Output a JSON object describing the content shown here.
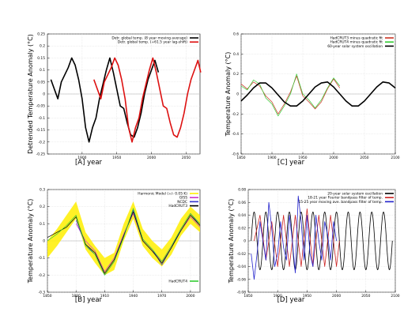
{
  "figure": {
    "panels": [
      {
        "id": "A",
        "panel_label": "[A]   year",
        "ylabel": "Detrended Temperature Anomaly (°C)",
        "xlim": [
          1850,
          2070
        ],
        "ylim": [
          -0.25,
          0.25
        ],
        "xticks": [
          1900,
          1950,
          2000,
          2050
        ],
        "yticks": [
          0.25,
          0.2,
          0.15,
          0.1,
          0.05,
          0,
          -0.05,
          -0.1,
          -0.15,
          -0.2,
          -0.25
        ],
        "ytick_labels": [
          "0.25",
          "0.2",
          "0.15",
          "0.1",
          "0.05",
          "0",
          "-0.05",
          "-0.1",
          "-0.15",
          "-0.2",
          "-0.25"
        ],
        "legend": [
          {
            "label": "Detr. global temp. (8 year moving average)",
            "color": "#000000"
          },
          {
            "label": "Detr. global temp. (+61.5 year lag-shift)",
            "color": "#dd1111"
          }
        ]
      },
      {
        "id": "C",
        "panel_label": "[C]   year",
        "ylabel": "Temperature Anomaly (°C)",
        "xlim": [
          1850,
          2100
        ],
        "ylim": [
          -0.6,
          0.6
        ],
        "xticks": [
          1850,
          1900,
          1950,
          2000,
          2050,
          2100
        ],
        "yticks": [
          0.6,
          0.4,
          0.2,
          0,
          -0.2,
          -0.4,
          -0.6
        ],
        "ytick_labels": [
          "0.6",
          "0.4",
          "0.2",
          "0",
          "-0.2",
          "-0.4",
          "-0.6"
        ],
        "legend": [
          {
            "label": "HadCRUT3 minus quadratic fit",
            "color": "#cc3322"
          },
          {
            "label": "HadCRUT4 minus quadratic fit",
            "color": "#33cc33"
          },
          {
            "label": "60-year solar system oscillation",
            "color": "#000000"
          }
        ]
      },
      {
        "id": "B",
        "panel_label": "[B]   year",
        "ylabel": "Temperature Anomaly (°C)",
        "xlim": [
          1850,
          2010
        ],
        "ylim": [
          -0.3,
          0.3
        ],
        "xticks": [
          1850,
          1880,
          1910,
          1940,
          1970,
          2000
        ],
        "yticks": [
          0.3,
          0.2,
          0.1,
          0,
          -0.1,
          -0.2,
          -0.3
        ],
        "ytick_labels": [
          "0.3",
          "0.2",
          "0.1",
          "0",
          "-0.1",
          "-0.2",
          "-0.3"
        ],
        "legend": [
          {
            "label": "Harmonic Model (+/- 0.05 K)",
            "color": "#ffee00"
          },
          {
            "label": "GISS",
            "color": "#cc33cc"
          },
          {
            "label": "NCDC",
            "color": "#3333cc"
          },
          {
            "label": "HadCRUT3",
            "color": "#000000"
          }
        ],
        "legend2": [
          {
            "label": "HadCRUT4",
            "color": "#33cc33"
          }
        ]
      },
      {
        "id": "D",
        "panel_label": "[D]   year",
        "ylabel": "Temperature Anomaly (°C)",
        "xlim": [
          1850,
          2100
        ],
        "ylim": [
          -0.08,
          0.08
        ],
        "xticks": [
          1850,
          1900,
          1950,
          2000,
          2050,
          2100
        ],
        "yticks": [
          0.08,
          0.06,
          0.04,
          0.02,
          0,
          -0.02,
          -0.04,
          -0.06,
          -0.08
        ],
        "ytick_labels": [
          "0.08",
          "0.06",
          "0.04",
          "0.02",
          "0",
          "-0.02",
          "-0.04",
          "-0.06",
          "-0.08"
        ],
        "legend": [
          {
            "label": "20-year solar system oscillation",
            "color": "#000000"
          },
          {
            "label": "18-21 year Fourier bandpass filter of temp.",
            "color": "#cc2222"
          },
          {
            "label": "15-25 year moving ave. bandpass filter of temp.",
            "color": "#2222cc"
          }
        ]
      }
    ]
  },
  "chart_data": [
    {
      "type": "line",
      "panel": "A",
      "ylabel": "Detrended Temperature Anomaly (°C)",
      "xlabel": "year",
      "series": [
        {
          "name": "Detr. global temp. (8 year moving average)",
          "color": "#000000",
          "x": [
            1855,
            1860,
            1865,
            1870,
            1875,
            1880,
            1885,
            1890,
            1895,
            1900,
            1905,
            1910,
            1915,
            1920,
            1925,
            1930,
            1935,
            1940,
            1945,
            1950,
            1955,
            1960,
            1965,
            1970,
            1975,
            1980,
            1985,
            1990,
            1995,
            2000,
            2005,
            2010
          ],
          "y": [
            0.06,
            0.02,
            -0.02,
            0.05,
            0.08,
            0.11,
            0.15,
            0.12,
            0.06,
            -0.02,
            -0.14,
            -0.2,
            -0.14,
            -0.1,
            -0.02,
            0.04,
            0.1,
            0.15,
            0.09,
            0.02,
            -0.05,
            -0.06,
            -0.12,
            -0.17,
            -0.18,
            -0.14,
            -0.08,
            0.0,
            0.06,
            0.1,
            0.14,
            0.09
          ]
        },
        {
          "name": "Detr. global temp. (+61.5 year lag-shift)",
          "color": "#dd1111",
          "x": [
            1917,
            1922,
            1927,
            1932,
            1937,
            1942,
            1947,
            1952,
            1957,
            1962,
            1967,
            1972,
            1977,
            1982,
            1987,
            1992,
            1997,
            2002,
            2007,
            2012,
            2017,
            2022,
            2027,
            2032,
            2037,
            2042,
            2047,
            2052,
            2057,
            2062,
            2067,
            2071
          ],
          "y": [
            0.06,
            0.02,
            -0.02,
            0.05,
            0.08,
            0.11,
            0.15,
            0.12,
            0.06,
            -0.02,
            -0.14,
            -0.2,
            -0.14,
            -0.1,
            -0.02,
            0.04,
            0.1,
            0.15,
            0.09,
            0.02,
            -0.05,
            -0.06,
            -0.12,
            -0.17,
            -0.18,
            -0.14,
            -0.08,
            0.0,
            0.06,
            0.1,
            0.14,
            0.09
          ]
        }
      ]
    },
    {
      "type": "line",
      "panel": "C",
      "ylabel": "Temperature Anomaly (°C)",
      "xlabel": "year",
      "series": [
        {
          "name": "HadCRUT3 minus quadratic fit",
          "color": "#cc3322",
          "x": [
            1850,
            1860,
            1870,
            1880,
            1890,
            1900,
            1910,
            1920,
            1930,
            1940,
            1950,
            1960,
            1970,
            1980,
            1990,
            2000,
            2010
          ],
          "y": [
            0.1,
            0.05,
            0.12,
            0.08,
            -0.02,
            -0.08,
            -0.2,
            -0.1,
            0.02,
            0.18,
            -0.02,
            -0.08,
            -0.15,
            -0.08,
            0.05,
            0.15,
            0.06
          ]
        },
        {
          "name": "HadCRUT4 minus quadratic fit",
          "color": "#33cc33",
          "x": [
            1850,
            1860,
            1870,
            1880,
            1890,
            1900,
            1910,
            1920,
            1930,
            1940,
            1950,
            1960,
            1970,
            1980,
            1990,
            2000,
            2010
          ],
          "y": [
            0.08,
            0.04,
            0.14,
            0.1,
            -0.04,
            -0.1,
            -0.22,
            -0.12,
            0.0,
            0.2,
            0.0,
            -0.06,
            -0.14,
            -0.06,
            0.06,
            0.16,
            0.08
          ]
        },
        {
          "name": "60-year solar system oscillation",
          "color": "#000000",
          "x": [
            1850,
            1860,
            1870,
            1880,
            1890,
            1900,
            1910,
            1920,
            1930,
            1940,
            1950,
            1960,
            1970,
            1980,
            1990,
            2000,
            2010,
            2020,
            2030,
            2040,
            2050,
            2060,
            2070,
            2080,
            2090,
            2100
          ],
          "y": [
            -0.07,
            -0.01,
            0.06,
            0.11,
            0.11,
            0.06,
            -0.01,
            -0.08,
            -0.12,
            -0.12,
            -0.07,
            0.0,
            0.07,
            0.11,
            0.12,
            0.07,
            0.0,
            -0.07,
            -0.12,
            -0.12,
            -0.07,
            0.0,
            0.07,
            0.12,
            0.11,
            0.06
          ]
        }
      ]
    },
    {
      "type": "line",
      "panel": "B",
      "ylabel": "Temperature Anomaly (°C)",
      "xlabel": "year",
      "series": [
        {
          "name": "Harmonic Model (+/- 0.05 K)",
          "color": "#ffee00",
          "x": [
            1850,
            1860,
            1870,
            1880,
            1890,
            1900,
            1910,
            1920,
            1930,
            1940,
            1950,
            1960,
            1970,
            1980,
            1990,
            2000,
            2010
          ],
          "y": [
            -0.05,
            0.02,
            0.1,
            0.18,
            0.0,
            -0.08,
            -0.15,
            -0.12,
            0.05,
            0.18,
            0.02,
            -0.05,
            -0.1,
            -0.03,
            0.08,
            0.15,
            0.1
          ]
        },
        {
          "name": "GISS",
          "color": "#cc33cc",
          "x": [
            1880,
            1890,
            1900,
            1910,
            1920,
            1930,
            1940,
            1950,
            1960,
            1970,
            1980,
            1990,
            2000,
            2010
          ],
          "y": [
            0.1,
            0.0,
            -0.06,
            -0.18,
            -0.1,
            0.04,
            0.16,
            0.0,
            -0.06,
            -0.12,
            -0.03,
            0.06,
            0.14,
            0.08
          ]
        },
        {
          "name": "NCDC",
          "color": "#3333cc",
          "x": [
            1880,
            1890,
            1900,
            1910,
            1920,
            1930,
            1940,
            1950,
            1960,
            1970,
            1980,
            1990,
            2000,
            2010
          ],
          "y": [
            0.12,
            -0.02,
            -0.08,
            -0.2,
            -0.12,
            0.03,
            0.18,
            0.01,
            -0.05,
            -0.14,
            -0.04,
            0.07,
            0.16,
            0.09
          ]
        },
        {
          "name": "HadCRUT3",
          "color": "#000000",
          "x": [
            1850,
            1860,
            1870,
            1880,
            1890,
            1900,
            1910,
            1920,
            1930,
            1940,
            1950,
            1960,
            1970,
            1980,
            1990,
            2000,
            2010
          ],
          "y": [
            0.02,
            0.05,
            0.08,
            0.14,
            -0.02,
            -0.07,
            -0.19,
            -0.11,
            0.03,
            0.17,
            0.0,
            -0.06,
            -0.13,
            -0.04,
            0.06,
            0.15,
            0.09
          ]
        },
        {
          "name": "HadCRUT4",
          "color": "#33cc33",
          "x": [
            1850,
            1860,
            1870,
            1880,
            1890,
            1900,
            1910,
            1920,
            1930,
            1940,
            1950,
            1960,
            1970,
            1980,
            1990,
            2000,
            2010
          ],
          "y": [
            0.0,
            0.04,
            0.09,
            0.15,
            -0.03,
            -0.08,
            -0.2,
            -0.12,
            0.02,
            0.19,
            0.01,
            -0.05,
            -0.12,
            -0.03,
            0.07,
            0.16,
            0.1
          ]
        }
      ]
    },
    {
      "type": "line",
      "panel": "D",
      "ylabel": "Temperature Anomaly (°C)",
      "xlabel": "year",
      "series": [
        {
          "name": "20-year solar system oscillation",
          "color": "#000000",
          "period": 20,
          "amplitude": 0.045,
          "x_range": [
            1855,
            2095
          ]
        },
        {
          "name": "18-21 year Fourier bandpass filter of temp.",
          "color": "#cc2222",
          "x": [
            1860,
            1870,
            1880,
            1890,
            1900,
            1910,
            1920,
            1930,
            1940,
            1950,
            1960,
            1970,
            1980,
            1990,
            2000,
            2005
          ],
          "y": [
            0.0,
            0.04,
            -0.03,
            0.03,
            -0.04,
            0.04,
            -0.04,
            0.04,
            -0.04,
            0.05,
            -0.04,
            0.04,
            -0.04,
            0.04,
            -0.04,
            0.0
          ]
        },
        {
          "name": "15-25 year moving ave. bandpass filter of temp.",
          "color": "#2222cc",
          "x": [
            1855,
            1860,
            1865,
            1870,
            1875,
            1880,
            1885,
            1890,
            1895,
            1900,
            1905,
            1910,
            1915,
            1920,
            1925,
            1930,
            1935,
            1940,
            1945,
            1950,
            1955,
            1960,
            1965,
            1970,
            1975,
            1980,
            1985,
            1990,
            1995,
            2000
          ],
          "y": [
            -0.02,
            -0.06,
            -0.02,
            0.03,
            0.0,
            -0.03,
            0.06,
            0.02,
            -0.04,
            -0.02,
            0.03,
            -0.01,
            -0.03,
            0.04,
            0.0,
            -0.05,
            0.07,
            0.03,
            -0.03,
            0.04,
            -0.02,
            -0.04,
            0.04,
            0.0,
            -0.03,
            0.03,
            0.01,
            -0.03,
            0.03,
            0.0
          ]
        }
      ]
    }
  ]
}
